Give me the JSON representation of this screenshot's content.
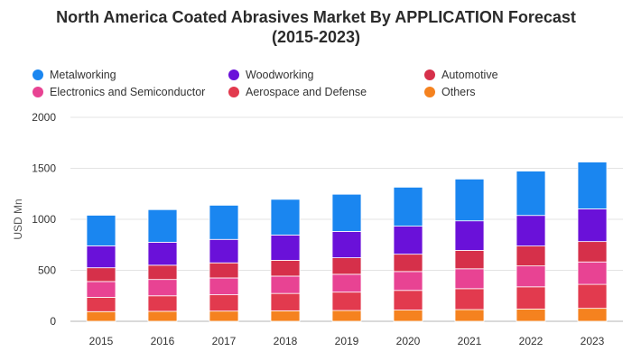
{
  "chart_data": {
    "type": "bar",
    "stacked": true,
    "title": "North America Coated Abrasives Market By APPLICATION Forecast (2015-2023)",
    "ylabel": "USD Mn",
    "ylim": [
      0,
      2000
    ],
    "yticks": [
      0,
      500,
      1000,
      1500,
      2000
    ],
    "grid": true,
    "legend_position": "top",
    "categories": [
      "2015",
      "2016",
      "2017",
      "2018",
      "2019",
      "2020",
      "2021",
      "2022",
      "2023"
    ],
    "series": [
      {
        "name": "Others",
        "color": "#f5821f",
        "values": [
          95,
          98,
          100,
          103,
          106,
          110,
          115,
          120,
          127
        ]
      },
      {
        "name": "Aerospace and Defense",
        "color": "#e23a4e",
        "values": [
          140,
          152,
          160,
          170,
          180,
          193,
          205,
          218,
          235
        ]
      },
      {
        "name": "Electronics and Semiconductor",
        "color": "#e84393",
        "values": [
          155,
          160,
          165,
          170,
          175,
          185,
          195,
          205,
          220
        ]
      },
      {
        "name": "Automotive",
        "color": "#d6304a",
        "values": [
          135,
          140,
          148,
          155,
          162,
          170,
          180,
          195,
          200
        ]
      },
      {
        "name": "Woodworking",
        "color": "#6a11d9",
        "values": [
          215,
          225,
          230,
          248,
          258,
          275,
          290,
          300,
          320
        ]
      },
      {
        "name": "Metalworking",
        "color": "#1a86f0",
        "values": [
          300,
          320,
          335,
          350,
          365,
          382,
          410,
          435,
          460
        ]
      }
    ]
  },
  "legend_order": [
    "Metalworking",
    "Woodworking",
    "Automotive",
    "Electronics and Semiconductor",
    "Aerospace and Defense",
    "Others"
  ]
}
